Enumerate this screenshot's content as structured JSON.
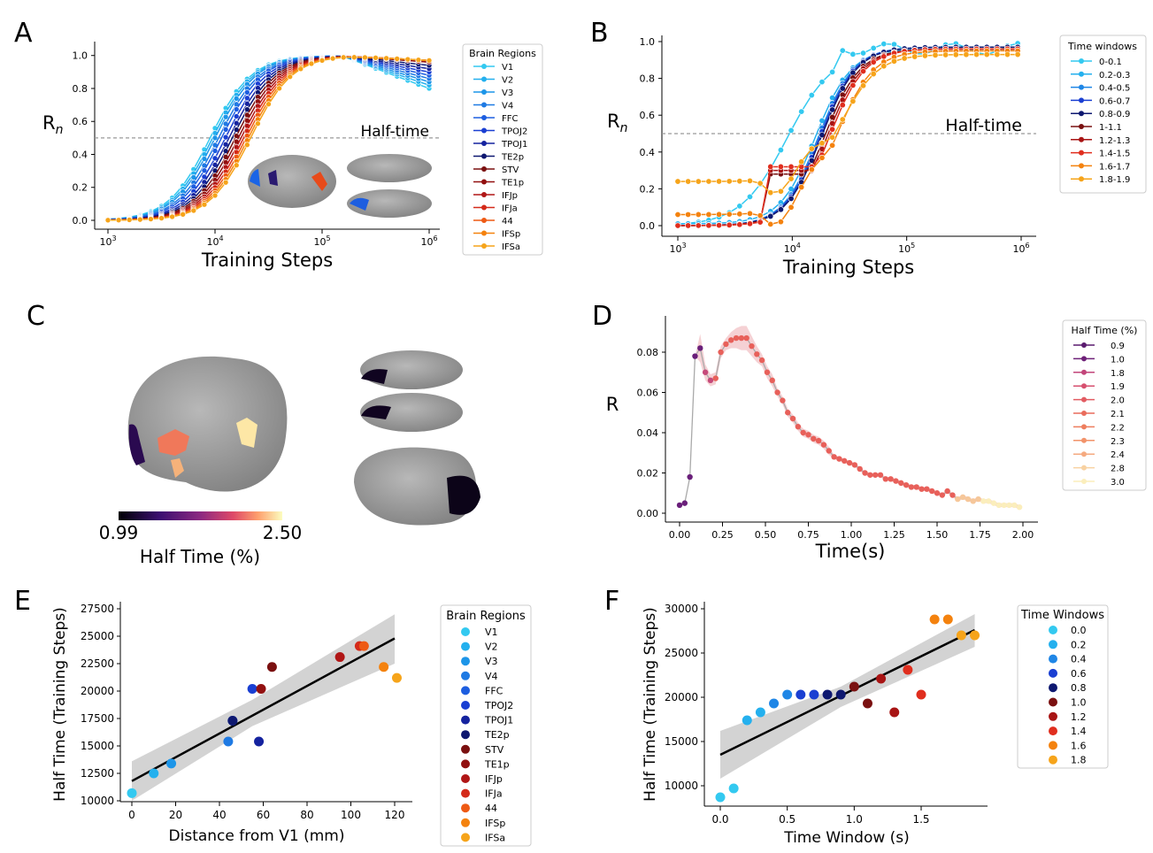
{
  "panels": {
    "A": "A",
    "B": "B",
    "C": "C",
    "D": "D",
    "E": "E",
    "F": "F"
  },
  "colors": {
    "regions": [
      "#33c9f0",
      "#24b0ee",
      "#1d95e8",
      "#1f7ae3",
      "#1d5ee0",
      "#1a3fd2",
      "#15239f",
      "#0e1870",
      "#7a1010",
      "#921010",
      "#b01616",
      "#d42a1a",
      "#ee5a14",
      "#f4820e",
      "#f6a41a"
    ],
    "windows": [
      "#33c9f0",
      "#24b0ee",
      "#1f86e6",
      "#1a3fd2",
      "#0e1870",
      "#7a1010",
      "#a81414",
      "#e02e1e",
      "#f4820e",
      "#f6a41a"
    ],
    "grey_band": "#d3d3d3",
    "half_line": "#999999",
    "fit_line": "#000000"
  },
  "chart_data": [
    {
      "id": "A",
      "type": "line",
      "xlabel": "Training Steps",
      "ylabel": "R",
      "ylabel_sub": "n",
      "xscale": "log",
      "xlim": [
        1000,
        1000000
      ],
      "ylim": [
        0,
        1.0
      ],
      "xticks": [
        "10^3",
        "10^4",
        "10^5",
        "10^6"
      ],
      "yticks": [
        "0.0",
        "0.2",
        "0.4",
        "0.6",
        "0.8",
        "1.0"
      ],
      "annotation": "Half-time",
      "hline": 0.5,
      "legend_title": "Brain Regions",
      "legend_position": "right",
      "series": [
        {
          "name": "V1",
          "halftime": 9000,
          "end": 0.8
        },
        {
          "name": "V2",
          "halftime": 9500,
          "end": 0.82
        },
        {
          "name": "V3",
          "halftime": 10000,
          "end": 0.84
        },
        {
          "name": "V4",
          "halftime": 10800,
          "end": 0.86
        },
        {
          "name": "FFC",
          "halftime": 11500,
          "end": 0.88
        },
        {
          "name": "TPOJ2",
          "halftime": 12500,
          "end": 0.9
        },
        {
          "name": "TPOJ1",
          "halftime": 13500,
          "end": 0.92
        },
        {
          "name": "TE2p",
          "halftime": 14500,
          "end": 0.94
        },
        {
          "name": "STV",
          "halftime": 15500,
          "end": 0.96
        },
        {
          "name": "TE1p",
          "halftime": 16500,
          "end": 0.96
        },
        {
          "name": "IFJp",
          "halftime": 17500,
          "end": 0.97
        },
        {
          "name": "IFJa",
          "halftime": 18500,
          "end": 0.97
        },
        {
          "name": "44",
          "halftime": 19500,
          "end": 0.97
        },
        {
          "name": "IFSp",
          "halftime": 20500,
          "end": 0.97
        },
        {
          "name": "IFSa",
          "halftime": 21500,
          "end": 0.97
        }
      ]
    },
    {
      "id": "B",
      "type": "line",
      "xlabel": "Training Steps",
      "ylabel": "R",
      "ylabel_sub": "n",
      "xscale": "log",
      "xlim": [
        1000,
        1000000
      ],
      "ylim": [
        0,
        1.0
      ],
      "xticks": [
        "10^3",
        "10^4",
        "10^5",
        "10^6"
      ],
      "yticks": [
        "0.0",
        "0.2",
        "0.4",
        "0.6",
        "0.8",
        "1.0"
      ],
      "annotation": "Half-time",
      "hline": 0.5,
      "legend_title": "Time windows",
      "legend_position": "right",
      "series": [
        {
          "name": "0-0.1",
          "start": 0.0,
          "halftime": 9000,
          "end": 0.95
        },
        {
          "name": "0.2-0.3",
          "start": 0.01,
          "halftime": 16000,
          "end": 0.96
        },
        {
          "name": "0.4-0.5",
          "start": 0.0,
          "halftime": 17000,
          "end": 0.97
        },
        {
          "name": "0.6-0.7",
          "start": 0.0,
          "halftime": 17500,
          "end": 0.97
        },
        {
          "name": "0.8-0.9",
          "start": 0.0,
          "halftime": 18000,
          "end": 0.97
        },
        {
          "name": "1-1.1",
          "start": 0.0,
          "halftime": 19000,
          "end": 0.96
        },
        {
          "name": "1.2-1.3",
          "start": 0.0,
          "halftime": 20000,
          "end": 0.96
        },
        {
          "name": "1.4-1.5",
          "start": 0.0,
          "halftime": 21000,
          "end": 0.96
        },
        {
          "name": "1.6-1.7",
          "start": 0.06,
          "halftime": 25000,
          "end": 0.95
        },
        {
          "name": "1.8-1.9",
          "start": 0.24,
          "halftime": 28000,
          "end": 0.93
        }
      ]
    },
    {
      "id": "C",
      "type": "heatmap",
      "colorbar_label": "Half Time (%)",
      "colorbar_min": "0.99",
      "colorbar_max": "2.50"
    },
    {
      "id": "D",
      "type": "line",
      "xlabel": "Time(s)",
      "ylabel": "R",
      "xlim": [
        -0.05,
        2.05
      ],
      "ylim": [
        0,
        0.095
      ],
      "xticks": [
        "0.00",
        "0.25",
        "0.50",
        "0.75",
        "1.00",
        "1.25",
        "1.50",
        "1.75",
        "2.00"
      ],
      "yticks": [
        "0.00",
        "0.02",
        "0.04",
        "0.06",
        "0.08"
      ],
      "legend_title": "Half Time (%)",
      "legend_position": "right",
      "legend": [
        "0.9",
        "1.0",
        "1.8",
        "1.9",
        "2.0",
        "2.1",
        "2.2",
        "2.3",
        "2.4",
        "2.8",
        "3.0"
      ],
      "x": [
        0.0,
        0.03,
        0.06,
        0.09,
        0.12,
        0.15,
        0.18,
        0.21,
        0.24,
        0.27,
        0.3,
        0.33,
        0.36,
        0.39,
        0.42,
        0.45,
        0.48,
        0.51,
        0.54,
        0.57,
        0.6,
        0.63,
        0.66,
        0.69,
        0.72,
        0.75,
        0.78,
        0.81,
        0.84,
        0.87,
        0.9,
        0.93,
        0.96,
        0.99,
        1.02,
        1.05,
        1.08,
        1.11,
        1.14,
        1.17,
        1.2,
        1.23,
        1.26,
        1.29,
        1.32,
        1.35,
        1.38,
        1.41,
        1.44,
        1.47,
        1.5,
        1.53,
        1.56,
        1.59,
        1.62,
        1.65,
        1.68,
        1.71,
        1.74,
        1.77,
        1.8,
        1.83,
        1.86,
        1.89,
        1.92,
        1.95,
        1.98
      ],
      "y": [
        0.004,
        0.005,
        0.018,
        0.078,
        0.082,
        0.07,
        0.066,
        0.067,
        0.08,
        0.084,
        0.086,
        0.087,
        0.087,
        0.087,
        0.083,
        0.079,
        0.076,
        0.07,
        0.066,
        0.06,
        0.056,
        0.05,
        0.047,
        0.043,
        0.04,
        0.039,
        0.037,
        0.036,
        0.034,
        0.031,
        0.028,
        0.027,
        0.026,
        0.025,
        0.024,
        0.022,
        0.02,
        0.019,
        0.019,
        0.019,
        0.017,
        0.017,
        0.016,
        0.015,
        0.014,
        0.013,
        0.013,
        0.012,
        0.012,
        0.011,
        0.01,
        0.009,
        0.011,
        0.009,
        0.007,
        0.008,
        0.007,
        0.006,
        0.007,
        0.006,
        0.006,
        0.005,
        0.004,
        0.004,
        0.004,
        0.004,
        0.003
      ],
      "band_width": [
        0,
        0,
        0,
        0,
        0.007,
        0.004,
        0.003,
        0.003,
        0.003,
        0.003,
        0.004,
        0.005,
        0.006,
        0.006,
        0.005,
        0.004,
        0.003,
        0.003,
        0.003,
        0.002,
        0.002,
        0.002,
        0.002,
        0.002,
        0.002,
        0.002,
        0.002,
        0.002,
        0.002,
        0.002,
        0.001,
        0.001,
        0.001,
        0.001,
        0.001,
        0.001,
        0.001,
        0.001,
        0.001,
        0.001,
        0.001,
        0.001,
        0.001,
        0.001,
        0.001,
        0.001,
        0.001,
        0.001,
        0.001,
        0.001,
        0.001,
        0.001,
        0.001,
        0.001,
        0.001,
        0.001,
        0.001,
        0.001,
        0.001,
        0.001,
        0.001,
        0.001,
        0.001,
        0.001,
        0.001,
        0.001,
        0.001
      ]
    },
    {
      "id": "E",
      "type": "scatter",
      "xlabel": "Distance from V1 (mm)",
      "ylabel": "Half Time (Training Steps)",
      "xlim": [
        -8,
        124
      ],
      "ylim": [
        9700,
        28300
      ],
      "xticks": [
        0,
        20,
        40,
        60,
        80,
        100,
        120
      ],
      "yticks": [
        10000,
        12500,
        15000,
        17500,
        20000,
        22500,
        25000,
        27500
      ],
      "legend_title": "Brain Regions",
      "legend_position": "right",
      "fit": {
        "x0": 0,
        "y0": 11800,
        "x1": 120,
        "y1": 24800
      },
      "points": [
        {
          "name": "V1",
          "x": 0,
          "y": 10700
        },
        {
          "name": "V2",
          "x": 10,
          "y": 12500
        },
        {
          "name": "V3",
          "x": 18,
          "y": 13400
        },
        {
          "name": "V4",
          "x": 44,
          "y": 15400
        },
        {
          "name": "FFC",
          "x": 46,
          "y": 17300
        },
        {
          "name": "TPOJ2",
          "x": 55,
          "y": 20200
        },
        {
          "name": "TPOJ1",
          "x": 58,
          "y": 15400
        },
        {
          "name": "TE2p",
          "x": 46,
          "y": 17300
        },
        {
          "name": "STV",
          "x": 64,
          "y": 22200
        },
        {
          "name": "TE1p",
          "x": 59,
          "y": 20200
        },
        {
          "name": "IFJp",
          "x": 95,
          "y": 23100
        },
        {
          "name": "IFJa",
          "x": 104,
          "y": 24100
        },
        {
          "name": "44",
          "x": 106,
          "y": 24100
        },
        {
          "name": "IFSp",
          "x": 115,
          "y": 22200
        },
        {
          "name": "IFSa",
          "x": 121,
          "y": 21200
        }
      ]
    },
    {
      "id": "F",
      "type": "scatter",
      "xlabel": "Time Window (s)",
      "ylabel": "Half Time (Training Steps)",
      "xlim": [
        -0.1,
        1.95
      ],
      "ylim": [
        8000,
        31000
      ],
      "xticks": [
        "0.0",
        "0.5",
        "1.0",
        "1.5"
      ],
      "yticks": [
        10000,
        15000,
        20000,
        25000,
        30000
      ],
      "legend_title": "Time Windows",
      "legend_position": "right",
      "legend": [
        "0.0",
        "0.2",
        "0.4",
        "0.6",
        "0.8",
        "1.0",
        "1.2",
        "1.4",
        "1.6",
        "1.8"
      ],
      "fit": {
        "x0": 0,
        "y0": 13500,
        "x1": 1.9,
        "y1": 27600
      },
      "points": [
        {
          "x": 0.0,
          "y": 8700,
          "c": 0
        },
        {
          "x": 0.1,
          "y": 9700,
          "c": 0
        },
        {
          "x": 0.2,
          "y": 17400,
          "c": 1
        },
        {
          "x": 0.3,
          "y": 18300,
          "c": 1
        },
        {
          "x": 0.4,
          "y": 19300,
          "c": 2
        },
        {
          "x": 0.5,
          "y": 20300,
          "c": 2
        },
        {
          "x": 0.6,
          "y": 20300,
          "c": 3
        },
        {
          "x": 0.7,
          "y": 20300,
          "c": 3
        },
        {
          "x": 0.8,
          "y": 20300,
          "c": 4
        },
        {
          "x": 0.9,
          "y": 20300,
          "c": 4
        },
        {
          "x": 1.0,
          "y": 21200,
          "c": 5
        },
        {
          "x": 1.1,
          "y": 19300,
          "c": 5
        },
        {
          "x": 1.2,
          "y": 22100,
          "c": 6
        },
        {
          "x": 1.3,
          "y": 18300,
          "c": 6
        },
        {
          "x": 1.4,
          "y": 23100,
          "c": 7
        },
        {
          "x": 1.5,
          "y": 20300,
          "c": 7
        },
        {
          "x": 1.6,
          "y": 28800,
          "c": 8
        },
        {
          "x": 1.7,
          "y": 28800,
          "c": 8
        },
        {
          "x": 1.8,
          "y": 27000,
          "c": 9
        },
        {
          "x": 1.9,
          "y": 27000,
          "c": 9
        }
      ]
    }
  ]
}
